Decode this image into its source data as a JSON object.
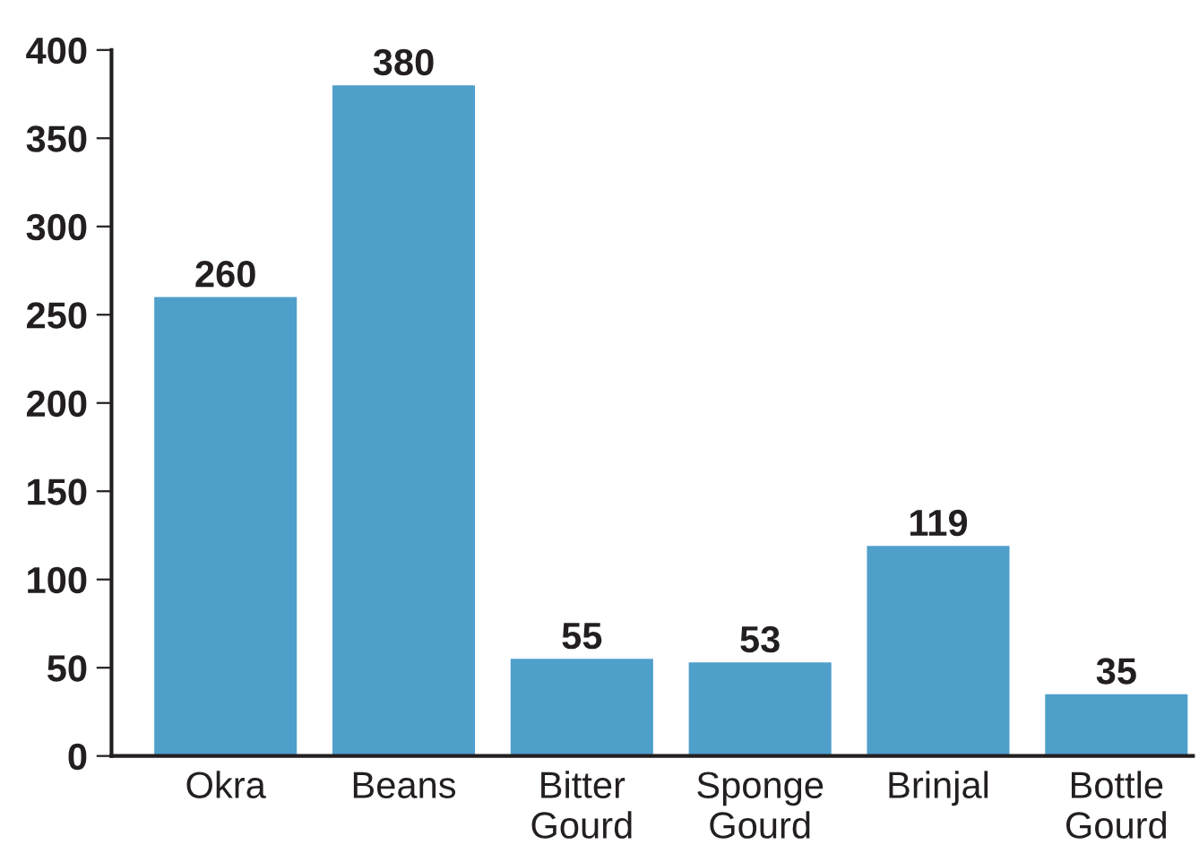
{
  "chart_data": {
    "type": "bar",
    "categories": [
      "Okra",
      "Beans",
      "Bitter\nGourd",
      "Sponge\nGourd",
      "Brinjal",
      "Bottle\nGourd"
    ],
    "values": [
      260,
      380,
      55,
      53,
      119,
      35
    ],
    "color": "#4f9fcb",
    "ylim": [
      0,
      400
    ],
    "yticks": [
      0,
      50,
      100,
      150,
      200,
      250,
      300,
      350,
      400
    ],
    "grid": false,
    "data_labels": true,
    "legend": false
  }
}
